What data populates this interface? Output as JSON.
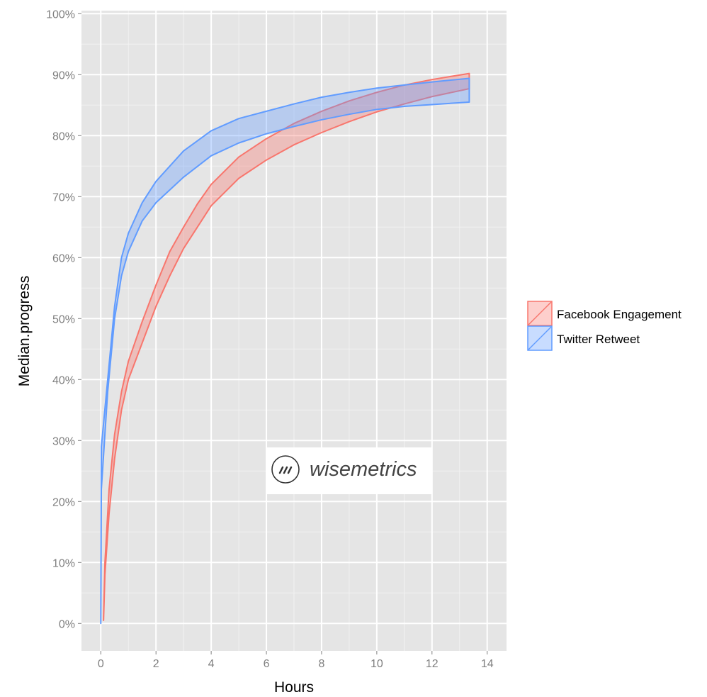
{
  "chart_data": {
    "type": "area",
    "subtype": "ribbon",
    "title": "",
    "xlabel": "Hours",
    "ylabel": "Median.progress",
    "xlim": [
      -0.7,
      14.7
    ],
    "ylim": [
      -4.5,
      100.5
    ],
    "x_ticks": [
      0,
      2,
      4,
      6,
      8,
      10,
      12,
      14
    ],
    "y_ticks": [
      0,
      10,
      20,
      30,
      40,
      50,
      60,
      70,
      80,
      90,
      100
    ],
    "y_tick_labels": [
      "0%",
      "10%",
      "20%",
      "30%",
      "40%",
      "50%",
      "60%",
      "70%",
      "80%",
      "90%",
      "100%"
    ],
    "grid": true,
    "legend_position": "right",
    "watermark": "wisemetrics",
    "series": [
      {
        "name": "Facebook Engagement",
        "color": "#F8766D",
        "x": [
          0.1,
          0.15,
          0.3,
          0.5,
          0.75,
          1,
          1.5,
          2,
          2.5,
          3,
          3.5,
          4,
          5,
          6,
          7,
          8,
          9,
          10,
          11,
          12,
          13.35
        ],
        "upper": [
          1,
          10,
          22,
          31,
          38,
          43,
          49.5,
          55.5,
          61,
          65,
          68.8,
          72,
          76.5,
          79.5,
          82,
          84,
          85.7,
          87.1,
          88.3,
          89.2,
          90.2
        ],
        "lower": [
          0.5,
          8,
          18,
          27,
          35,
          40,
          46,
          52,
          57,
          61.5,
          65,
          68.5,
          73,
          76,
          78.5,
          80.5,
          82.3,
          83.9,
          85.2,
          86.4,
          87.7
        ]
      },
      {
        "name": "Twitter Retweet",
        "color": "#619CFF",
        "x": [
          0,
          0.02,
          0.25,
          0.5,
          0.75,
          1,
          1.5,
          2,
          3,
          4,
          5,
          6,
          7,
          8,
          9,
          10,
          11,
          12,
          13.35
        ],
        "upper": [
          0,
          29,
          40,
          52,
          60,
          64,
          69,
          72.5,
          77.5,
          80.8,
          82.8,
          84,
          85.2,
          86.3,
          87.1,
          87.8,
          88.3,
          88.8,
          89.4
        ],
        "lower": [
          0,
          22,
          38,
          50,
          57,
          61,
          66,
          69,
          73.2,
          76.7,
          78.8,
          80.3,
          81.5,
          82.6,
          83.5,
          84.3,
          84.8,
          85.1,
          85.5
        ]
      }
    ]
  }
}
